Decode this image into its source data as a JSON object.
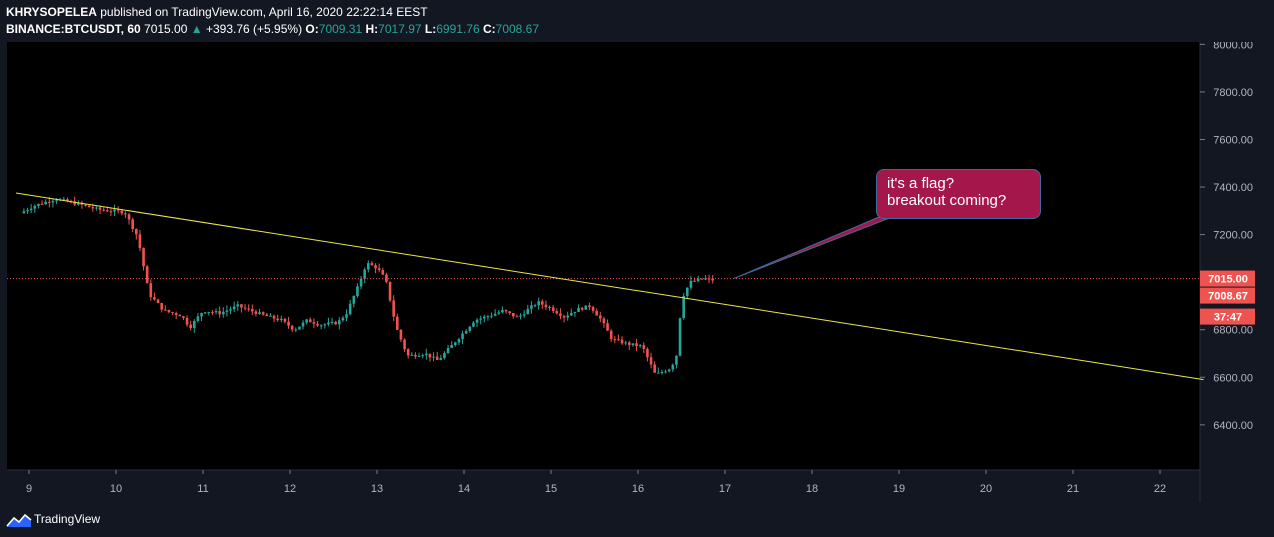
{
  "header": {
    "author": "KHRYSOPELEA",
    "published": "published on TradingView.com, April 16, 2020 22:22:14 EEST",
    "symbol": "BINANCE:BTCUSDT, 60",
    "last": "7015.00",
    "change_arrow": "▲",
    "change": "+393.76 (+5.95%)",
    "o_label": "O:",
    "o_value": "7009.31",
    "h_label": "H:",
    "h_value": "7017.97",
    "l_label": "L:",
    "l_value": "6991.76",
    "c_label": "C:",
    "c_value": "7008.67"
  },
  "annotation": {
    "line1": "it's a flag?",
    "line2": "breakout coming?"
  },
  "footer": {
    "brand": "TradingView"
  },
  "colors": {
    "up": "#26a69a",
    "down": "#ef5350",
    "trendline": "#e8e84a",
    "callout": "#a3174b",
    "bg": "#000000"
  },
  "chart_data": {
    "type": "candlestick",
    "symbol": "BINANCE:BTCUSDT",
    "interval": "60",
    "x_ticks": [
      "9",
      "10",
      "11",
      "12",
      "13",
      "14",
      "15",
      "16",
      "17",
      "18",
      "19",
      "20",
      "21",
      "22"
    ],
    "y_ticks": [
      "6400.00",
      "6600.00",
      "6800.00",
      "7000.00",
      "7200.00",
      "7400.00",
      "7600.00",
      "7800.00",
      "8000.00"
    ],
    "ylim": [
      6210,
      8010
    ],
    "price_labels": {
      "last": "7015.00",
      "close": "7008.67",
      "countdown": "37:47"
    },
    "price_line": 7015,
    "trendline": {
      "start": [
        8.85,
        7375
      ],
      "end": [
        22.5,
        6590
      ]
    },
    "price_path": [
      [
        8.9,
        7290
      ],
      [
        9.05,
        7320
      ],
      [
        9.3,
        7350
      ],
      [
        9.55,
        7330
      ],
      [
        9.8,
        7305
      ],
      [
        10.1,
        7295
      ],
      [
        10.25,
        7190
      ],
      [
        10.38,
        6950
      ],
      [
        10.55,
        6880
      ],
      [
        10.75,
        6860
      ],
      [
        10.85,
        6810
      ],
      [
        11.0,
        6880
      ],
      [
        11.2,
        6870
      ],
      [
        11.4,
        6900
      ],
      [
        11.55,
        6880
      ],
      [
        11.7,
        6860
      ],
      [
        11.9,
        6840
      ],
      [
        12.05,
        6800
      ],
      [
        12.2,
        6840
      ],
      [
        12.35,
        6820
      ],
      [
        12.55,
        6830
      ],
      [
        12.65,
        6870
      ],
      [
        12.78,
        6980
      ],
      [
        12.88,
        7080
      ],
      [
        13.0,
        7060
      ],
      [
        13.1,
        7010
      ],
      [
        13.22,
        6810
      ],
      [
        13.35,
        6690
      ],
      [
        13.55,
        6700
      ],
      [
        13.7,
        6670
      ],
      [
        13.85,
        6730
      ],
      [
        14.0,
        6790
      ],
      [
        14.12,
        6840
      ],
      [
        14.3,
        6860
      ],
      [
        14.45,
        6880
      ],
      [
        14.62,
        6850
      ],
      [
        14.75,
        6890
      ],
      [
        14.85,
        6915
      ],
      [
        15.0,
        6890
      ],
      [
        15.15,
        6855
      ],
      [
        15.3,
        6885
      ],
      [
        15.45,
        6900
      ],
      [
        15.58,
        6840
      ],
      [
        15.7,
        6760
      ],
      [
        15.88,
        6740
      ],
      [
        16.05,
        6730
      ],
      [
        16.2,
        6610
      ],
      [
        16.38,
        6640
      ],
      [
        16.45,
        6700
      ],
      [
        16.5,
        6930
      ],
      [
        16.6,
        7000
      ],
      [
        16.75,
        7015
      ],
      [
        16.88,
        7008
      ]
    ]
  }
}
